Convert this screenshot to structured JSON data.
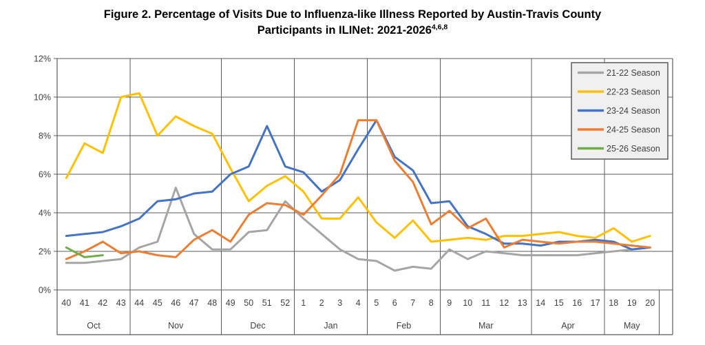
{
  "chart_data": {
    "type": "line",
    "title": "Figure 2. Percentage of Visits Due to Influenza-like Illness Reported by Austin-Travis County Participants in ILINet: 2021-2026",
    "title_superscript": "4,6,8",
    "xlabel": "",
    "ylabel": "",
    "ylim": [
      0,
      12
    ],
    "y_ticks": [
      "0%",
      "2%",
      "4%",
      "6%",
      "8%",
      "10%",
      "12%"
    ],
    "y_tick_values": [
      0,
      2,
      4,
      6,
      8,
      10,
      12
    ],
    "grid": "horizontal gridlines on, vertical separators at month boundaries",
    "legend_position": "top-right",
    "x_weeks": [
      "40",
      "41",
      "42",
      "43",
      "44",
      "45",
      "46",
      "47",
      "48",
      "49",
      "50",
      "51",
      "52",
      "1",
      "2",
      "3",
      "4",
      "5",
      "6",
      "7",
      "8",
      "9",
      "10",
      "11",
      "12",
      "13",
      "14",
      "15",
      "16",
      "17",
      "18",
      "19",
      "20"
    ],
    "month_groups": [
      {
        "label": "Oct",
        "weeks": 4
      },
      {
        "label": "Nov",
        "weeks": 5
      },
      {
        "label": "Dec",
        "weeks": 4
      },
      {
        "label": "Jan",
        "weeks": 4
      },
      {
        "label": "Feb",
        "weeks": 4
      },
      {
        "label": "Mar",
        "weeks": 5
      },
      {
        "label": "Apr",
        "weeks": 4
      },
      {
        "label": "May",
        "weeks": 3
      }
    ],
    "series": [
      {
        "name": "21-22 Season",
        "color": "#A5A5A5",
        "values": [
          1.4,
          1.4,
          1.5,
          1.6,
          2.2,
          2.5,
          5.3,
          2.9,
          2.1,
          2.1,
          3.0,
          3.1,
          4.6,
          3.7,
          2.9,
          2.1,
          1.6,
          1.5,
          1.0,
          1.2,
          1.1,
          2.1,
          1.6,
          2.0,
          1.9,
          1.8,
          1.8,
          1.8,
          1.8,
          1.9,
          2.0,
          2.1,
          2.2
        ]
      },
      {
        "name": "22-23 Season",
        "color": "#FFC000",
        "values": [
          5.8,
          7.6,
          7.1,
          10.0,
          10.2,
          8.0,
          9.0,
          8.5,
          8.1,
          6.3,
          4.6,
          5.4,
          5.9,
          5.1,
          3.7,
          3.7,
          4.8,
          3.5,
          2.7,
          3.6,
          2.5,
          2.6,
          2.7,
          2.6,
          2.8,
          2.8,
          2.9,
          3.0,
          2.8,
          2.7,
          3.2,
          2.5,
          2.8
        ]
      },
      {
        "name": "23-24 Season",
        "color": "#4472C4",
        "values": [
          2.8,
          2.9,
          3.0,
          3.3,
          3.7,
          4.6,
          4.7,
          5.0,
          5.1,
          6.0,
          6.4,
          8.5,
          6.4,
          6.1,
          5.1,
          5.7,
          7.3,
          8.8,
          6.9,
          6.2,
          4.5,
          4.6,
          3.3,
          2.9,
          2.4,
          2.4,
          2.3,
          2.5,
          2.5,
          2.6,
          2.5,
          2.1,
          2.2
        ]
      },
      {
        "name": "24-25 Season",
        "color": "#ED7D31",
        "values": [
          1.6,
          2.0,
          2.5,
          1.9,
          2.0,
          1.8,
          1.7,
          2.6,
          3.1,
          2.5,
          3.9,
          4.5,
          4.4,
          3.9,
          4.9,
          6.0,
          8.8,
          8.8,
          6.7,
          5.6,
          3.4,
          4.1,
          3.2,
          3.7,
          2.2,
          2.6,
          2.5,
          2.4,
          2.5,
          2.5,
          2.4,
          2.3,
          2.2
        ]
      },
      {
        "name": "25-26 Season",
        "color": "#70AD47",
        "values": [
          2.2,
          1.7,
          1.8,
          null,
          null,
          null,
          null,
          null,
          null,
          null,
          null,
          null,
          null,
          null,
          null,
          null,
          null,
          null,
          null,
          null,
          null,
          null,
          null,
          null,
          null,
          null,
          null,
          null,
          null,
          null,
          null,
          null,
          null
        ]
      }
    ],
    "style": {
      "gridline_color": "#595959",
      "axis_label_color": "#404040",
      "legend_fill": "#F0F0F0",
      "legend_border": "#595959",
      "background": "#FFFFFF"
    }
  }
}
